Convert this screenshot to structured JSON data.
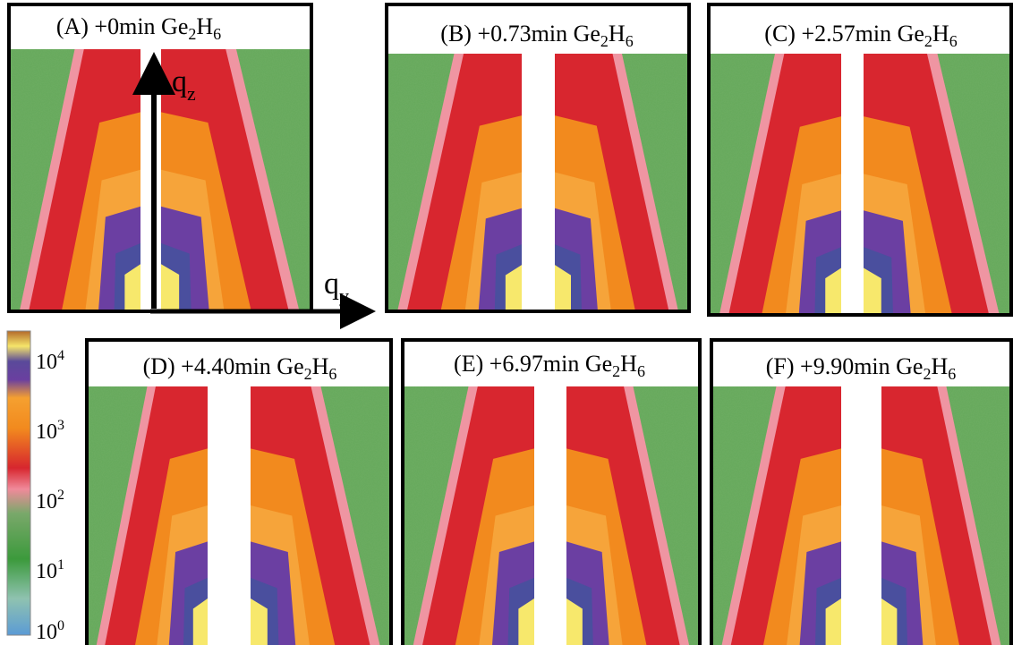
{
  "panels": [
    {
      "label": "(A) +0min",
      "formula": [
        "Ge",
        "2",
        "H",
        "6"
      ]
    },
    {
      "label": "(B) +0.73min",
      "formula": [
        "Ge",
        "2",
        "H",
        "6"
      ]
    },
    {
      "label": "(C) +2.57min",
      "formula": [
        "Ge",
        "2",
        "H",
        "6"
      ]
    },
    {
      "label": "(D) +4.40min",
      "formula": [
        "Ge",
        "2",
        "H",
        "6"
      ]
    },
    {
      "label": "(E) +6.97min",
      "formula": [
        "Ge",
        "2",
        "H",
        "6"
      ]
    },
    {
      "label": "(F) +9.90min",
      "formula": [
        "Ge",
        "2",
        "H",
        "6"
      ]
    }
  ],
  "axes": {
    "vertical": [
      "q",
      "z"
    ],
    "horizontal": [
      "q",
      "y"
    ]
  },
  "colorbar": {
    "labels": [
      [
        "10",
        "4"
      ],
      [
        "10",
        "3"
      ],
      [
        "10",
        "2"
      ],
      [
        "10",
        "1"
      ],
      [
        "10",
        "0"
      ]
    ]
  }
}
